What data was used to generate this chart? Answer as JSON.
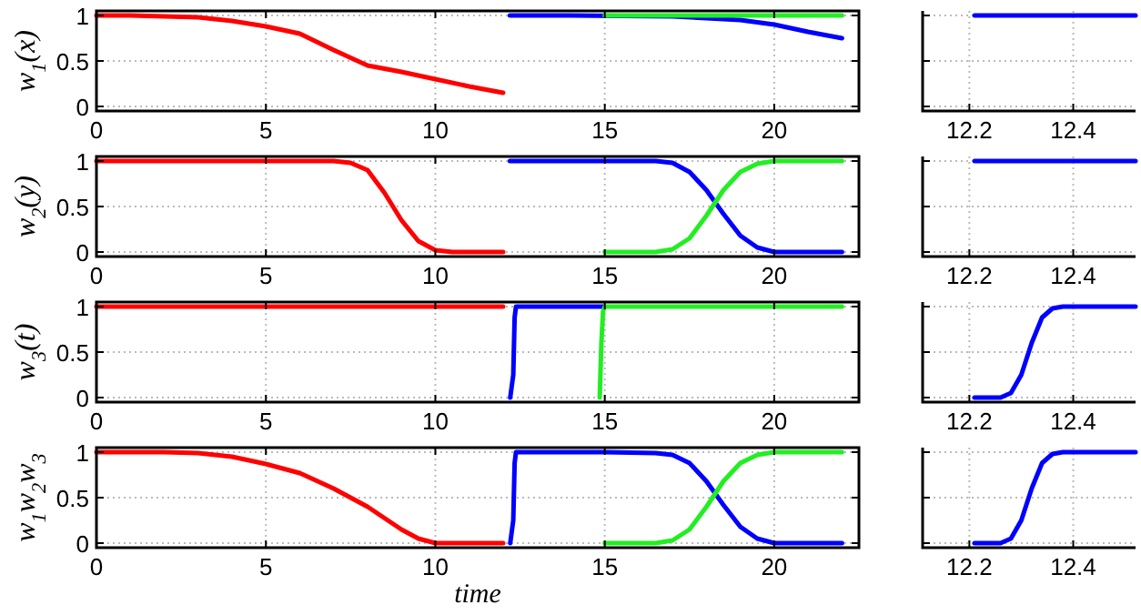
{
  "chart_data": [
    {
      "type": "line",
      "ylabel": "w$_{1}$(x)",
      "xlim": [
        0,
        22.5
      ],
      "ylim": [
        -0.05,
        1.05
      ],
      "xticks": [
        0,
        5,
        10,
        15,
        20
      ],
      "yticks": [
        0,
        0.5,
        1
      ],
      "grid": true,
      "series": [
        {
          "color": "#ff0000",
          "x": [
            0,
            1,
            2,
            3,
            4,
            5,
            6,
            7,
            8,
            9,
            10,
            11,
            12
          ],
          "values": [
            1,
            1,
            0.99,
            0.98,
            0.94,
            0.88,
            0.8,
            0.62,
            0.45,
            0.38,
            0.3,
            0.22,
            0.15
          ]
        },
        {
          "color": "#0000ff",
          "x": [
            12.2,
            14,
            17,
            18,
            19,
            20,
            21,
            22
          ],
          "values": [
            1,
            1,
            0.99,
            0.97,
            0.95,
            0.9,
            0.82,
            0.75
          ]
        },
        {
          "color": "#22ee22",
          "x": [
            15,
            17,
            20,
            22
          ],
          "values": [
            1,
            1,
            1,
            1
          ]
        }
      ]
    },
    {
      "type": "line",
      "xlim": [
        12.11,
        12.52
      ],
      "ylim": [
        -0.05,
        1.05
      ],
      "xticks": [
        12.2,
        12.4
      ],
      "yticks": [
        {
          "value": 0,
          "label": null
        },
        {
          "value": 0.5,
          "label": null
        },
        {
          "value": 1,
          "label": null
        }
      ],
      "tick_labels": "x",
      "grid": true,
      "series": [
        {
          "color": "#0000ff",
          "x": [
            12.21,
            12.52
          ],
          "values": [
            1,
            1
          ]
        }
      ]
    },
    {
      "type": "line",
      "ylabel": "w$_{2}$(y)",
      "xlim": [
        0,
        22.5
      ],
      "ylim": [
        -0.05,
        1.05
      ],
      "xticks": [
        0,
        5,
        10,
        15,
        20
      ],
      "yticks": [
        0,
        0.5,
        1
      ],
      "grid": true,
      "series": [
        {
          "color": "#ff0000",
          "x": [
            0,
            7,
            7.5,
            8,
            8.5,
            9,
            9.5,
            10,
            10.5,
            12
          ],
          "values": [
            1,
            1,
            0.98,
            0.9,
            0.65,
            0.35,
            0.12,
            0.02,
            0,
            0
          ]
        },
        {
          "color": "#0000ff",
          "x": [
            12.2,
            16.5,
            17,
            17.5,
            18,
            18.5,
            19,
            19.5,
            20,
            22
          ],
          "values": [
            1,
            1,
            0.98,
            0.88,
            0.68,
            0.42,
            0.18,
            0.05,
            0,
            0
          ]
        },
        {
          "color": "#22ee22",
          "x": [
            15,
            16.5,
            17,
            17.5,
            18,
            18.5,
            19,
            19.5,
            20,
            22
          ],
          "values": [
            0,
            0,
            0.03,
            0.15,
            0.4,
            0.68,
            0.88,
            0.97,
            1,
            1
          ]
        }
      ]
    },
    {
      "type": "line",
      "xlim": [
        12.11,
        12.52
      ],
      "ylim": [
        -0.05,
        1.05
      ],
      "xticks": [
        12.2,
        12.4
      ],
      "yticks": [
        {
          "value": 0,
          "label": null
        },
        {
          "value": 0.5,
          "label": null
        },
        {
          "value": 1,
          "label": null
        }
      ],
      "tick_labels": "x",
      "grid": true,
      "series": [
        {
          "color": "#0000ff",
          "x": [
            12.21,
            12.52
          ],
          "values": [
            1,
            1
          ]
        }
      ]
    },
    {
      "type": "line",
      "ylabel": "w$_{3}$(t)",
      "xlim": [
        0,
        22.5
      ],
      "ylim": [
        -0.05,
        1.05
      ],
      "xticks": [
        0,
        5,
        10,
        15,
        20
      ],
      "yticks": [
        0,
        0.5,
        1
      ],
      "grid": true,
      "series": [
        {
          "color": "#ff0000",
          "x": [
            0,
            12
          ],
          "values": [
            1,
            1
          ]
        },
        {
          "color": "#0000ff",
          "x": [
            12.21,
            12.3,
            12.34,
            12.38,
            15
          ],
          "values": [
            0,
            0.25,
            0.88,
            1,
            1
          ]
        },
        {
          "color": "#22ee22",
          "x": [
            14.85,
            14.9,
            14.95,
            15,
            22
          ],
          "values": [
            0,
            0.6,
            0.95,
            1,
            1
          ]
        }
      ]
    },
    {
      "type": "line",
      "xlim": [
        12.11,
        12.52
      ],
      "ylim": [
        -0.05,
        1.05
      ],
      "xticks": [
        12.2,
        12.4
      ],
      "yticks": [
        {
          "value": 0,
          "label": null
        },
        {
          "value": 0.5,
          "label": null
        },
        {
          "value": 1,
          "label": null
        }
      ],
      "tick_labels": "x",
      "grid": true,
      "series": [
        {
          "color": "#0000ff",
          "x": [
            12.21,
            12.26,
            12.28,
            12.3,
            12.32,
            12.34,
            12.36,
            12.38,
            12.52
          ],
          "values": [
            0,
            0,
            0.05,
            0.25,
            0.6,
            0.88,
            0.98,
            1,
            1
          ]
        }
      ]
    },
    {
      "type": "line",
      "ylabel": "w$_{1}$w$_{2}$w$_{3}$",
      "xlabel": "time",
      "xlim": [
        0,
        22.5
      ],
      "ylim": [
        -0.05,
        1.05
      ],
      "xticks": [
        0,
        5,
        10,
        15,
        20
      ],
      "yticks": [
        0,
        0.5,
        1
      ],
      "grid": true,
      "series": [
        {
          "color": "#ff0000",
          "x": [
            0,
            2,
            3,
            4,
            5,
            6,
            7,
            8,
            9,
            9.5,
            10,
            12
          ],
          "values": [
            1,
            1,
            0.99,
            0.95,
            0.87,
            0.77,
            0.6,
            0.4,
            0.15,
            0.05,
            0,
            0
          ]
        },
        {
          "color": "#0000ff",
          "x": [
            12.21,
            12.3,
            12.34,
            12.38,
            15,
            16.5,
            17,
            17.5,
            18,
            18.5,
            19,
            19.5,
            20,
            22
          ],
          "values": [
            0,
            0.25,
            0.88,
            1,
            1,
            0.99,
            0.97,
            0.88,
            0.68,
            0.42,
            0.18,
            0.05,
            0,
            0
          ]
        },
        {
          "color": "#22ee22",
          "x": [
            15,
            16.5,
            17,
            17.5,
            18,
            18.5,
            19,
            19.5,
            20,
            22
          ],
          "values": [
            0,
            0,
            0.03,
            0.15,
            0.4,
            0.68,
            0.88,
            0.97,
            1,
            1
          ]
        }
      ]
    },
    {
      "type": "line",
      "xlim": [
        12.11,
        12.52
      ],
      "ylim": [
        -0.05,
        1.05
      ],
      "xticks": [
        12.2,
        12.4
      ],
      "yticks": [
        {
          "value": 0,
          "label": null
        },
        {
          "value": 0.5,
          "label": null
        },
        {
          "value": 1,
          "label": null
        }
      ],
      "tick_labels": "x",
      "grid": true,
      "series": [
        {
          "color": "#0000ff",
          "x": [
            12.21,
            12.26,
            12.28,
            12.3,
            12.32,
            12.34,
            12.36,
            12.38,
            12.52
          ],
          "values": [
            0,
            0,
            0.05,
            0.25,
            0.6,
            0.88,
            0.98,
            1,
            1
          ]
        }
      ]
    }
  ]
}
